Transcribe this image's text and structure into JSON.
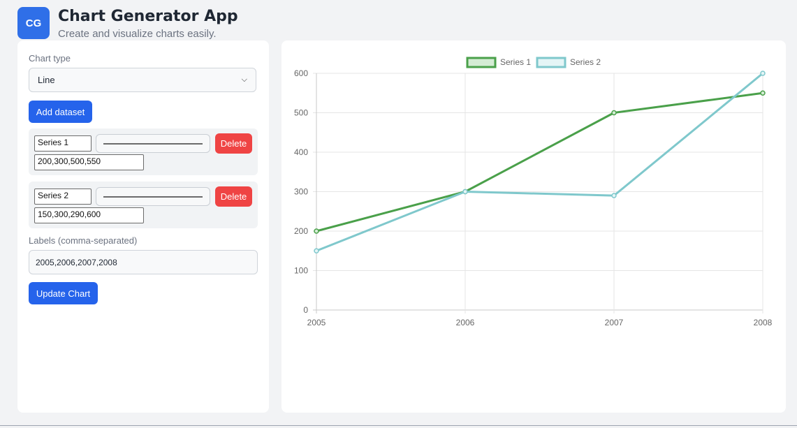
{
  "header": {
    "logo_text": "CG",
    "title": "Chart Generator App",
    "subtitle": "Create and visualize charts easily."
  },
  "controls": {
    "chart_type_label": "Chart type",
    "chart_type_value": "Line",
    "add_dataset_label": "Add dataset",
    "datasets": [
      {
        "name": "Series 1",
        "values": "200,300,500,550",
        "delete_label": "Delete"
      },
      {
        "name": "Series 2",
        "values": "150,300,290,600",
        "delete_label": "Delete"
      }
    ],
    "labels_label": "Labels (comma-separated)",
    "labels_value": "2005,2006,2007,2008",
    "update_label": "Update Chart"
  },
  "chart_data": {
    "type": "line",
    "x": [
      "2005",
      "2006",
      "2007",
      "2008"
    ],
    "ylim": [
      0,
      600
    ],
    "yticks": [
      0,
      100,
      200,
      300,
      400,
      500,
      600
    ],
    "grid": true,
    "legend_position": "top",
    "series": [
      {
        "name": "Series 1",
        "values": [
          200,
          300,
          500,
          550
        ],
        "color": "#4aa04a",
        "fill": "#d4ecd4"
      },
      {
        "name": "Series 2",
        "values": [
          150,
          300,
          290,
          600
        ],
        "color": "#7fc8cc",
        "fill": "#e4f5f6"
      }
    ]
  }
}
